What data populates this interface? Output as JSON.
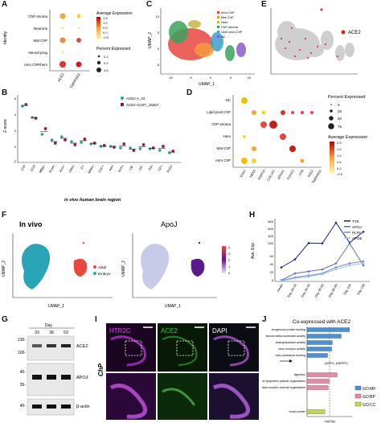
{
  "panels": {
    "A": "A",
    "B": "B",
    "C": "C",
    "D": "D",
    "E": "E",
    "F": "F",
    "G": "G",
    "H": "H",
    "I": "I",
    "J": "J"
  },
  "panelA": {
    "ylabel": "Identity",
    "rows": [
      "ChP stroma",
      "Neurons",
      "Mat ChP",
      "Neural prog",
      "Imm ChP/hem"
    ],
    "genes": [
      "ACE2",
      "TMPRSS2"
    ],
    "expr_title": "Average Expression",
    "expr_ticks": [
      "1.5",
      "1.0",
      "0.5",
      "0.0",
      "-0.5"
    ],
    "pct_title": "Percent Expressed",
    "pct_values": [
      "0.2",
      "0.4",
      "0.6"
    ]
  },
  "panelC": {
    "xlabel": "UMAP_1",
    "ylabel": "UMAP_2",
    "legend": [
      "Imm ChP",
      "Mat ChP",
      "Hem",
      "ChP stroma",
      "Lipid prod ChP",
      "NC"
    ],
    "legend_colors": [
      "#e8473f",
      "#f39b3a",
      "#c8b53a",
      "#3aa35a",
      "#3aa0c8",
      "#8a5cc8"
    ],
    "xticks": [
      "-10",
      "-5",
      "0",
      "5",
      "10"
    ],
    "yticks": [
      "10",
      "5",
      "0",
      "-5"
    ]
  },
  "panelE": {
    "legend": "ACE2"
  },
  "panelB": {
    "ylabel": "Z-score",
    "xlabel": "in vivo human brain region",
    "legend": [
      "ACE2 A_23",
      "ACE2 CUST_16267"
    ],
    "legend_colors": [
      "#2aa58c",
      "#8a1a3a"
    ],
    "yticks": [
      "6",
      "4",
      "2",
      "0",
      "-2"
    ],
    "regions": [
      "ChP",
      "CGS",
      "MBB+",
      "PVH+",
      "Arm+",
      "VRH+",
      "ZI+",
      "MRH+",
      "ChC+",
      "AH+",
      "Arm+",
      "CB-",
      "GP-",
      "TH+",
      "CP+",
      "PVH+"
    ]
  },
  "panelD": {
    "rows": [
      "NC",
      "Lipid prod ChP",
      "ChP stroma",
      "Hem",
      "Mat ChP",
      "Imm ChP"
    ],
    "genes": [
      "SOX2",
      "NEK6",
      "RSPO3",
      "COL1A1",
      "APOA1",
      "FOXG1",
      "TTR",
      "ACE2",
      "TMPRSS2"
    ],
    "pct_title": "Percent Expressed",
    "pct_values": [
      "0",
      "25",
      "50",
      "75"
    ],
    "expr_title": "Average Expression",
    "expr_ticks": [
      "2.0",
      "1.5",
      "1.0",
      "0.5",
      "0.0",
      "-0.5"
    ]
  },
  "panelF": {
    "title_left": "In vivo",
    "title_right": "ApoJ",
    "xlabel": "UMAP_1",
    "ylabel": "UMAP_2",
    "legend": [
      "Adult",
      "Embryo"
    ],
    "legend_colors": [
      "#e8473f",
      "#2aa5b8"
    ],
    "scale_ticks": [
      "4",
      "3",
      "2",
      "1",
      "0"
    ]
  },
  "panelH": {
    "ylabel": "Ave. Exp.",
    "yticks": [
      "800",
      "600",
      "400",
      "200",
      "60",
      "40",
      "20",
      "0"
    ],
    "xticks": [
      "media",
      "Day 20-33",
      "Day 34-49",
      "Day 50-69",
      "Day 80-89",
      "Day 100",
      "Day 146"
    ],
    "legend": [
      "TTR",
      "APOJ",
      "PLTP",
      "APOE"
    ],
    "legend_colors": [
      "#1a237e",
      "#5c6bc0",
      "#7986cb",
      "#90caf9"
    ]
  },
  "panelG": {
    "day_label": "Day",
    "days": [
      "33",
      "38",
      "53"
    ],
    "mw": [
      "130-",
      "100-",
      "40-",
      "35-",
      "40-"
    ],
    "bands": [
      "ACE2",
      "APOJ",
      "β-actin"
    ]
  },
  "panelI": {
    "channels": [
      "HTR2C",
      "ACE2",
      "DAPI"
    ],
    "channel_colors": [
      "#e040fb",
      "#33cc33",
      "#ffffff"
    ],
    "side_label": "ChP"
  },
  "panelJ": {
    "title": "Co-expressed with ACE2",
    "terms": [
      "exogenous protein binding",
      "steroid delta-isomerase activity",
      "aminopeptidase activity",
      "virus receptor activity",
      "toxic substance binding",
      "digestion",
      "plasma lipoprotein particle organization",
      "protein-lipid complex subunit organization",
      "brush border"
    ],
    "annotation": "(DPP4, ANPEP)",
    "xlabel": "-log10(p)",
    "legend": [
      "GO:MF",
      "GO:BP",
      "GO:CC"
    ],
    "legend_colors": [
      "#4a90d9",
      "#e88aa6",
      "#c4d64a"
    ]
  },
  "chart_data": [
    {
      "type": "scatter",
      "panel": "H",
      "categories": [
        "media",
        "Day 20-33",
        "Day 34-49",
        "Day 50-69",
        "Day 80-89",
        "Day 100",
        "Day 146"
      ],
      "series": [
        {
          "name": "TTR",
          "values": [
            35,
            55,
            240,
            230,
            800,
            250,
            550
          ]
        },
        {
          "name": "APOJ",
          "values": [
            3,
            20,
            25,
            30,
            45,
            230,
            40
          ]
        },
        {
          "name": "PLTP",
          "values": [
            2,
            10,
            15,
            20,
            35,
            45,
            50
          ]
        },
        {
          "name": "APOE",
          "values": [
            1,
            8,
            12,
            18,
            30,
            40,
            45
          ]
        }
      ]
    },
    {
      "type": "bar",
      "panel": "J",
      "categories": [
        "exogenous protein binding",
        "steroid delta-isomerase activity",
        "aminopeptidase activity",
        "virus receptor activity",
        "toxic substance binding",
        "digestion",
        "plasma lipoprotein particle organization",
        "protein-lipid complex subunit organization",
        "brush border"
      ],
      "values": [
        6.2,
        5.0,
        3.7,
        3.6,
        3.0,
        4.4,
        3.2,
        3.1,
        2.6
      ],
      "groups": [
        "GO:MF",
        "GO:MF",
        "GO:MF",
        "GO:MF",
        "GO:MF",
        "GO:BP",
        "GO:BP",
        "GO:BP",
        "GO:CC"
      ]
    },
    {
      "type": "scatter",
      "panel": "B",
      "categories": [
        "ChP",
        "CGS",
        "MBB+",
        "PVH+",
        "Arm+",
        "VRH+",
        "ZI+",
        "MRH+",
        "ChC+",
        "AH+",
        "Arm+",
        "CB-",
        "GP-",
        "TH+",
        "CP+",
        "PVH+"
      ],
      "series": [
        {
          "name": "ACE2 A_23",
          "values": [
            5.0,
            3.6,
            1.5,
            0.8,
            1.2,
            0.6,
            0.5,
            0.3,
            0.0,
            0.0,
            -0.2,
            -0.2,
            -0.3,
            -0.3,
            -0.5,
            -0.8
          ]
        },
        {
          "name": "ACE2 CUST_16267",
          "values": [
            5.2,
            3.5,
            2.2,
            0.4,
            0.8,
            0.2,
            0.9,
            0.4,
            0.1,
            -0.1,
            0.3,
            -0.5,
            0.2,
            -0.2,
            0.0,
            -0.6
          ]
        }
      ]
    }
  ]
}
